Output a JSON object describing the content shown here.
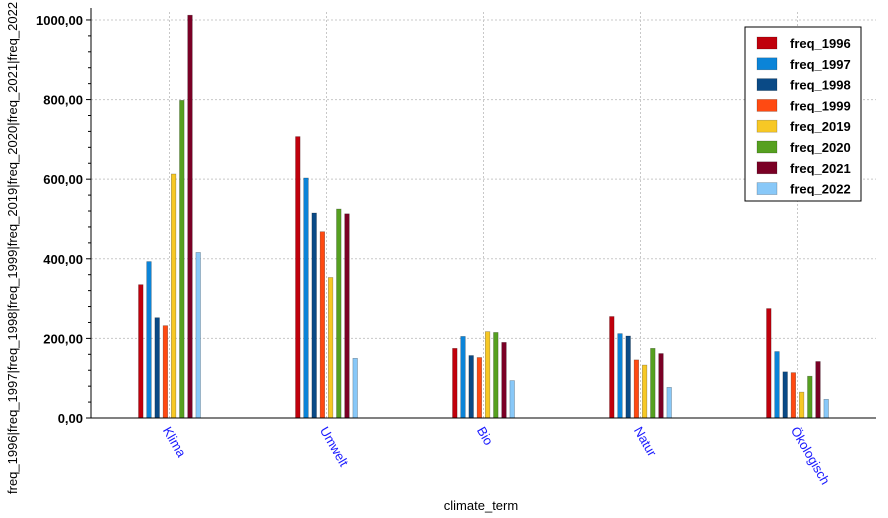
{
  "chart_data": {
    "type": "bar",
    "xlabel": "climate_term",
    "ylabel": "freq_1996|freq_1997|freq_1998|freq_1999|freq_2019|freq_2020|freq_2021|freq_2022",
    "ylim": [
      0,
      1000
    ],
    "yticks": [
      0,
      200,
      400,
      600,
      800,
      1000
    ],
    "ytick_labels": [
      "0,00",
      "200,00",
      "400,00",
      "600,00",
      "800,00",
      "1000,00"
    ],
    "grid": true,
    "legend_position": "top-right",
    "categories": [
      "Klima",
      "Umwelt",
      "Bio",
      "Natur",
      "Ökologisch"
    ],
    "series": [
      {
        "name": "freq_1996",
        "color": "#c0000c",
        "values": [
          335,
          707,
          175,
          255,
          275
        ]
      },
      {
        "name": "freq_1997",
        "color": "#0b84d8",
        "values": [
          393,
          603,
          205,
          212,
          167
        ]
      },
      {
        "name": "freq_1998",
        "color": "#0a4a86",
        "values": [
          252,
          515,
          157,
          206,
          116
        ]
      },
      {
        "name": "freq_1999",
        "color": "#ff4a12",
        "values": [
          232,
          468,
          152,
          146,
          114
        ]
      },
      {
        "name": "freq_2019",
        "color": "#f7c825",
        "values": [
          613,
          353,
          217,
          133,
          65
        ]
      },
      {
        "name": "freq_2020",
        "color": "#56a020",
        "values": [
          798,
          525,
          215,
          175,
          105
        ]
      },
      {
        "name": "freq_2021",
        "color": "#7a0025",
        "values": [
          1012,
          513,
          190,
          162,
          142
        ]
      },
      {
        "name": "freq_2022",
        "color": "#88c8f8",
        "values": [
          416,
          150,
          94,
          77,
          47
        ]
      }
    ]
  }
}
